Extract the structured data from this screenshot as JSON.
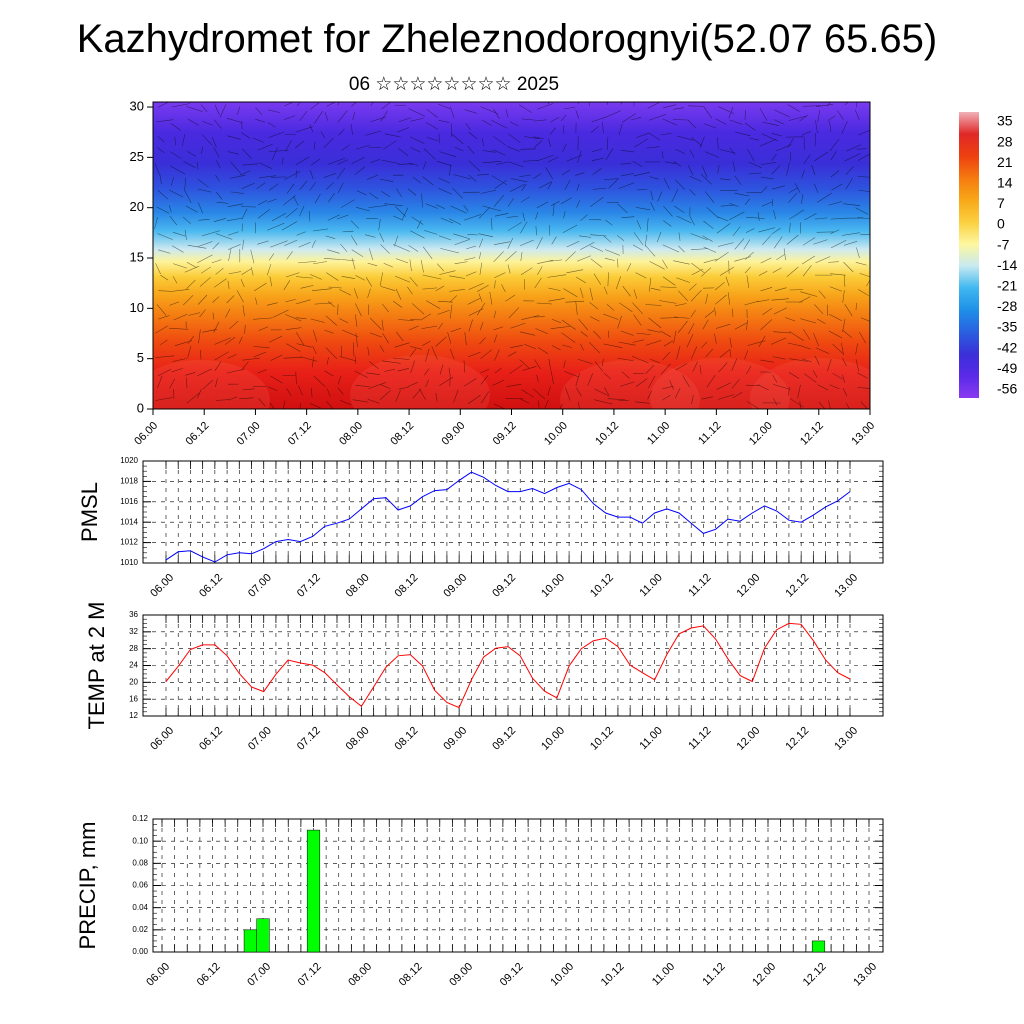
{
  "header": {
    "title": "Kazhydromet for Zheleznodorognyi(52.07 65.65)",
    "subtitle": "06 ☆☆☆☆☆☆☆☆ 2025"
  },
  "chart_data": [
    {
      "type": "heatmap",
      "title": "",
      "time_labels": [
        "06.00",
        "06.12",
        "07.00",
        "07.12",
        "08.00",
        "08.12",
        "09.00",
        "09.12",
        "10.00",
        "10.12",
        "11.00",
        "11.12",
        "12.00",
        "12.12",
        "13.00"
      ],
      "ylim": [
        0,
        30.5
      ],
      "yticks": [
        0,
        5,
        10,
        15,
        20,
        25,
        30
      ],
      "colorbar": {
        "labels": [
          "35",
          "28",
          "21",
          "14",
          "7",
          "0",
          "-7",
          "-14",
          "-21",
          "-28",
          "-35",
          "-42",
          "-49",
          "-56"
        ],
        "colors": [
          "#f0b0b8",
          "#e02828",
          "#ee4010",
          "#f57a10",
          "#f8a818",
          "#fbd040",
          "#fdf7a0",
          "#c8eaf0",
          "#40b8f0",
          "#1f90e8",
          "#2a60e0",
          "#3a30d8",
          "#5a2ae8",
          "#8a3af0"
        ]
      }
    },
    {
      "type": "line",
      "ylabel": "PMSL",
      "ylim": [
        1010,
        1020
      ],
      "yticks": [
        "1010",
        "1012",
        "1014",
        "1016",
        "1018",
        "1020"
      ],
      "time_labels": [
        "06.00",
        "06.12",
        "07.00",
        "07.12",
        "08.00",
        "08.12",
        "09.00",
        "09.12",
        "10.00",
        "10.12",
        "11.00",
        "11.12",
        "12.00",
        "12.12",
        "13.00"
      ],
      "color": "#0000ff",
      "step_hours": 3,
      "values": [
        1010.3,
        1011.1,
        1011.2,
        1010.6,
        1010.1,
        1010.8,
        1011.0,
        1010.9,
        1011.4,
        1012.1,
        1012.3,
        1012.1,
        1012.6,
        1013.6,
        1013.9,
        1014.3,
        1015.3,
        1016.3,
        1016.4,
        1015.2,
        1015.6,
        1016.5,
        1017.1,
        1017.2,
        1018.1,
        1018.9,
        1018.4,
        1017.6,
        1017.0,
        1017.0,
        1017.3,
        1016.8,
        1017.4,
        1017.8,
        1017.2,
        1015.8,
        1014.9,
        1014.5,
        1014.5,
        1013.9,
        1014.9,
        1015.3,
        1014.9,
        1013.9,
        1012.9,
        1013.3,
        1014.3,
        1014.1,
        1014.9,
        1015.6,
        1015.1,
        1014.2,
        1014.0,
        1014.7,
        1015.5,
        1016.1,
        1017.0
      ]
    },
    {
      "type": "line",
      "ylabel": "TEMP at 2 M",
      "ylim": [
        12,
        36
      ],
      "yticks": [
        "12",
        "16",
        "20",
        "24",
        "28",
        "32",
        "36"
      ],
      "time_labels": [
        "06.00",
        "06.12",
        "07.00",
        "07.12",
        "08.00",
        "08.12",
        "09.00",
        "09.12",
        "10.00",
        "10.12",
        "11.00",
        "11.12",
        "12.00",
        "12.12",
        "13.00"
      ],
      "color": "#ff0000",
      "step_hours": 3,
      "values": [
        20.2,
        23.8,
        27.8,
        28.9,
        28.9,
        26.3,
        22.1,
        18.9,
        17.8,
        21.9,
        25.3,
        24.6,
        24.1,
        22.3,
        19.4,
        16.6,
        14.3,
        18.9,
        23.6,
        26.3,
        26.6,
        23.9,
        18.1,
        15.2,
        14.0,
        20.6,
        26.0,
        28.1,
        28.5,
        26.3,
        21.0,
        17.9,
        16.3,
        23.9,
        28.0,
        29.9,
        30.5,
        28.5,
        24.1,
        22.3,
        20.6,
        26.6,
        31.5,
        32.9,
        33.4,
        30.3,
        25.6,
        21.6,
        20.2,
        28.1,
        32.5,
        34.0,
        33.8,
        29.9,
        25.3,
        22.3,
        20.8
      ]
    },
    {
      "type": "bar",
      "ylabel": "PRECIP, mm",
      "ylim": [
        0,
        0.12
      ],
      "yticks": [
        "0.00",
        "0.02",
        "0.04",
        "0.06",
        "0.08",
        "0.10",
        "0.12"
      ],
      "time_labels": [
        "06.00",
        "06.12",
        "07.00",
        "07.12",
        "08.00",
        "08.12",
        "09.00",
        "09.12",
        "10.00",
        "10.12",
        "11.00",
        "11.12",
        "12.00",
        "12.12",
        "13.00"
      ],
      "color": "#00ff00",
      "step_hours": 3,
      "bars": [
        {
          "hour": 21,
          "value": 0.02
        },
        {
          "hour": 24,
          "value": 0.03
        },
        {
          "hour": 36,
          "value": 0.11
        },
        {
          "hour": 156,
          "value": 0.01
        }
      ]
    }
  ]
}
